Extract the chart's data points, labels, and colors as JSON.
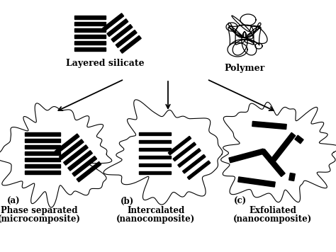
{
  "bg_color": "#ffffff",
  "line_color": "#000000",
  "fill_color": "#000000",
  "title_top_left": "Layered silicate",
  "title_top_right": "Polymer",
  "label_a": "(a)",
  "label_b": "(b)",
  "label_c": "(c)",
  "sub_a1": "Phase separated",
  "sub_a2": "(microcomposite)",
  "sub_b1": "Intercalated",
  "sub_b2": "(nanocomposite)",
  "sub_c1": "Exfoliated",
  "sub_c2": "(nanocomposite)",
  "fig_w": 4.74,
  "fig_h": 3.56,
  "dpi": 100
}
